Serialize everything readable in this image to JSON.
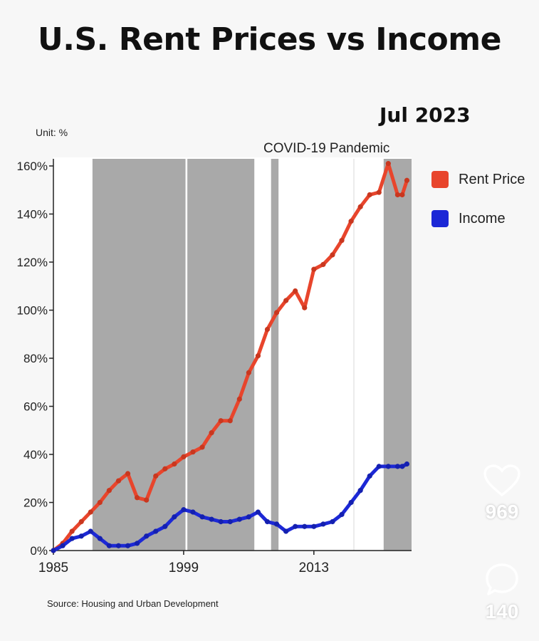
{
  "title": "U.S. Rent Prices vs Income",
  "date_label": "Jul 2023",
  "unit_label": "Unit: %",
  "annotation": "COVID-19 Pandemic",
  "source": "Source: Housing and Urban Development",
  "social": {
    "likes": "969",
    "comments": "140",
    "like_icon": "heart-icon",
    "comment_icon": "comment-bubble-icon"
  },
  "colors": {
    "rent": "#e8452c",
    "income": "#1c28d6",
    "shade": "#a9a9a9"
  },
  "chart_data": {
    "type": "line",
    "title": "U.S. Rent Prices vs Income",
    "xlabel": "",
    "ylabel": "Unit: %",
    "xlim": [
      1985,
      2023.5
    ],
    "ylim": [
      0,
      160
    ],
    "x_ticks": [
      1985,
      1999,
      2013
    ],
    "x_tick_labels": [
      "1985",
      "1999",
      "2013"
    ],
    "y_ticks": [
      0,
      20,
      40,
      60,
      80,
      100,
      120,
      140,
      160
    ],
    "y_tick_labels": [
      "0%",
      "20%",
      "40%",
      "60%",
      "80%",
      "100%",
      "120%",
      "140%",
      "160%"
    ],
    "legend_position": "right",
    "shaded_periods": [
      [
        1989.2,
        1999.2
      ],
      [
        1999.4,
        2006.6
      ],
      [
        2008.4,
        2009.2
      ],
      [
        2020.5,
        2023.5
      ]
    ],
    "annotation": {
      "text": "COVID-19 Pandemic",
      "x": 2008.8
    },
    "series": [
      {
        "name": "Rent Price",
        "x": [
          1985,
          1986,
          1987,
          1988,
          1989,
          1990,
          1991,
          1992,
          1993,
          1994,
          1995,
          1996,
          1997,
          1998,
          1999,
          2000,
          2001,
          2002,
          2003,
          2004,
          2005,
          2006,
          2007,
          2008,
          2009,
          2010,
          2011,
          2012,
          2013,
          2014,
          2015,
          2016,
          2017,
          2018,
          2019,
          2020,
          2021,
          2022,
          2022.5,
          2023
        ],
        "y": [
          0,
          3,
          8,
          12,
          16,
          20,
          25,
          29,
          32,
          22,
          21,
          31,
          34,
          36,
          39,
          41,
          43,
          49,
          54,
          54,
          63,
          74,
          81,
          92,
          99,
          104,
          108,
          101,
          117,
          119,
          123,
          129,
          137,
          143,
          148,
          149,
          161,
          148,
          148,
          154
        ]
      },
      {
        "name": "Income",
        "x": [
          1985,
          1986,
          1987,
          1988,
          1989,
          1990,
          1991,
          1992,
          1993,
          1994,
          1995,
          1996,
          1997,
          1998,
          1999,
          2000,
          2001,
          2002,
          2003,
          2004,
          2005,
          2006,
          2007,
          2008,
          2009,
          2010,
          2011,
          2012,
          2013,
          2014,
          2015,
          2016,
          2017,
          2018,
          2019,
          2020,
          2021,
          2022,
          2022.5,
          2023
        ],
        "y": [
          0,
          2,
          5,
          6,
          8,
          5,
          2,
          2,
          2,
          3,
          6,
          8,
          10,
          14,
          17,
          16,
          14,
          13,
          12,
          12,
          13,
          14,
          16,
          12,
          11,
          8,
          10,
          10,
          10,
          11,
          12,
          15,
          20,
          25,
          31,
          35,
          35,
          35,
          35,
          36
        ]
      }
    ]
  }
}
